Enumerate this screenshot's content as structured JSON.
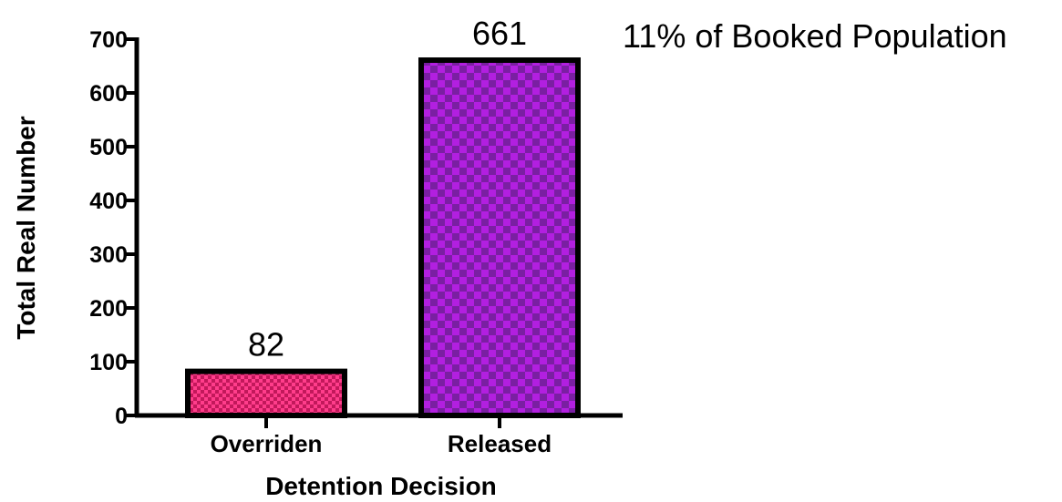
{
  "chart_data": {
    "type": "bar",
    "categories": [
      "Overriden",
      "Released"
    ],
    "values": [
      82,
      661
    ],
    "data_labels": [
      "82",
      "661"
    ],
    "xlabel": "Detention Decision",
    "ylabel": "Total Real Number",
    "ylim": [
      0,
      700
    ],
    "yticks": [
      0,
      100,
      200,
      300,
      400,
      500,
      600,
      700
    ],
    "ytick_labels": [
      "0",
      "100",
      "200",
      "300",
      "400",
      "500",
      "600",
      "700"
    ],
    "annotation": "11% of Booked Population",
    "grid": false,
    "legend": "none",
    "bar_colors": [
      "#ff3d8b",
      "#b21fe0"
    ],
    "bar_pattern_colors": [
      "#c2185b",
      "#7a1fa2"
    ],
    "bar_outline_color": "#000000"
  }
}
